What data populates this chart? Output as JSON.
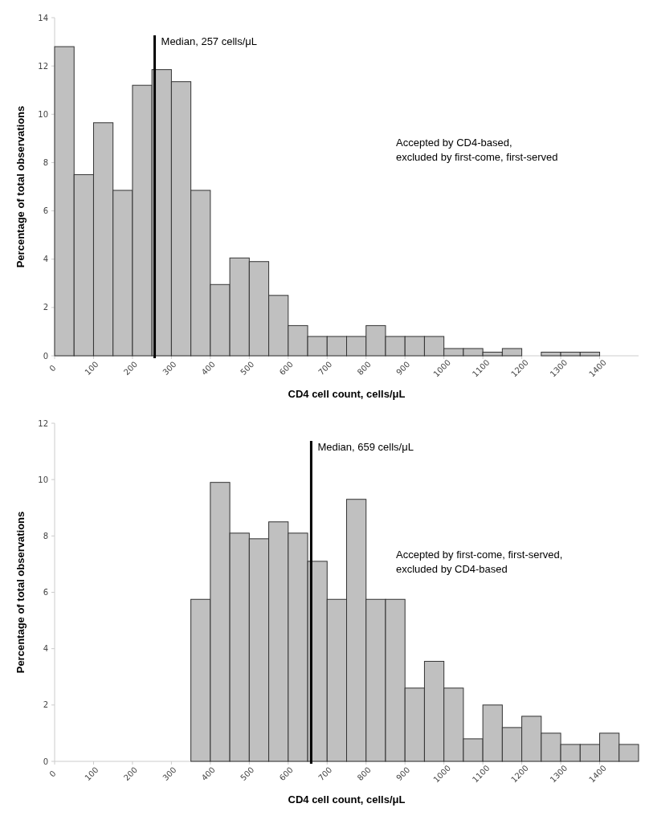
{
  "chart_data": [
    {
      "type": "histogram",
      "xlabel": "CD4 cell count, cells/μL",
      "ylabel": "Percentage of total observations",
      "color": "#c0c0c0",
      "bins": [
        0,
        50,
        100,
        150,
        200,
        250,
        300,
        350,
        400,
        450,
        500,
        550,
        600,
        650,
        700,
        750,
        800,
        850,
        900,
        950,
        1000,
        1050,
        1100,
        1150,
        1200,
        1250,
        1300,
        1350,
        1400
      ],
      "values": [
        12.8,
        7.5,
        9.65,
        6.85,
        11.2,
        11.85,
        11.35,
        6.85,
        2.95,
        4.05,
        3.9,
        2.5,
        1.25,
        0.8,
        0.8,
        0.8,
        1.25,
        0.8,
        0.8,
        0.8,
        0.3,
        0.3,
        0.15,
        0.3,
        0,
        0.15,
        0.15,
        0.15
      ],
      "xlim": [
        0,
        1500
      ],
      "xticks": [
        0,
        100,
        200,
        300,
        400,
        500,
        600,
        700,
        800,
        900,
        1000,
        1100,
        1200,
        1300,
        1400
      ],
      "ylim": [
        0,
        14
      ],
      "yticks": [
        0,
        2,
        4,
        6,
        8,
        10,
        12,
        14
      ],
      "ref_lines": [
        {
          "axis": "x",
          "value": 257,
          "label": "Median, 257 cells/μL",
          "color": "#000000"
        }
      ],
      "annotations": [
        "Accepted by CD4-based,\nexcluded by first-come, first-served"
      ]
    },
    {
      "type": "histogram",
      "xlabel": "CD4 cell count, cells/μL",
      "ylabel": "Percentage of total observations",
      "color": "#c0c0c0",
      "bins": [
        350,
        400,
        450,
        500,
        550,
        600,
        650,
        700,
        750,
        800,
        850,
        900,
        950,
        1000,
        1050,
        1100,
        1150,
        1200,
        1250,
        1300,
        1350,
        1400,
        1450,
        1500
      ],
      "values": [
        5.75,
        9.9,
        8.1,
        7.9,
        8.5,
        8.1,
        7.1,
        5.75,
        9.3,
        5.75,
        5.75,
        2.6,
        3.55,
        2.6,
        0.8,
        2.0,
        1.2,
        1.6,
        1.0,
        0.6,
        0.6,
        1.0,
        0.6
      ],
      "xlim": [
        0,
        1500
      ],
      "xticks": [
        0,
        100,
        200,
        300,
        400,
        500,
        600,
        700,
        800,
        900,
        1000,
        1100,
        1200,
        1300,
        1400
      ],
      "ylim": [
        0,
        12
      ],
      "yticks": [
        0,
        2,
        4,
        6,
        8,
        10,
        12
      ],
      "ref_lines": [
        {
          "axis": "x",
          "value": 659,
          "label": "Median, 659 cells/μL",
          "color": "#000000"
        }
      ],
      "annotations": [
        "Accepted by first-come, first-served,\nexcluded by CD4-based"
      ]
    }
  ]
}
